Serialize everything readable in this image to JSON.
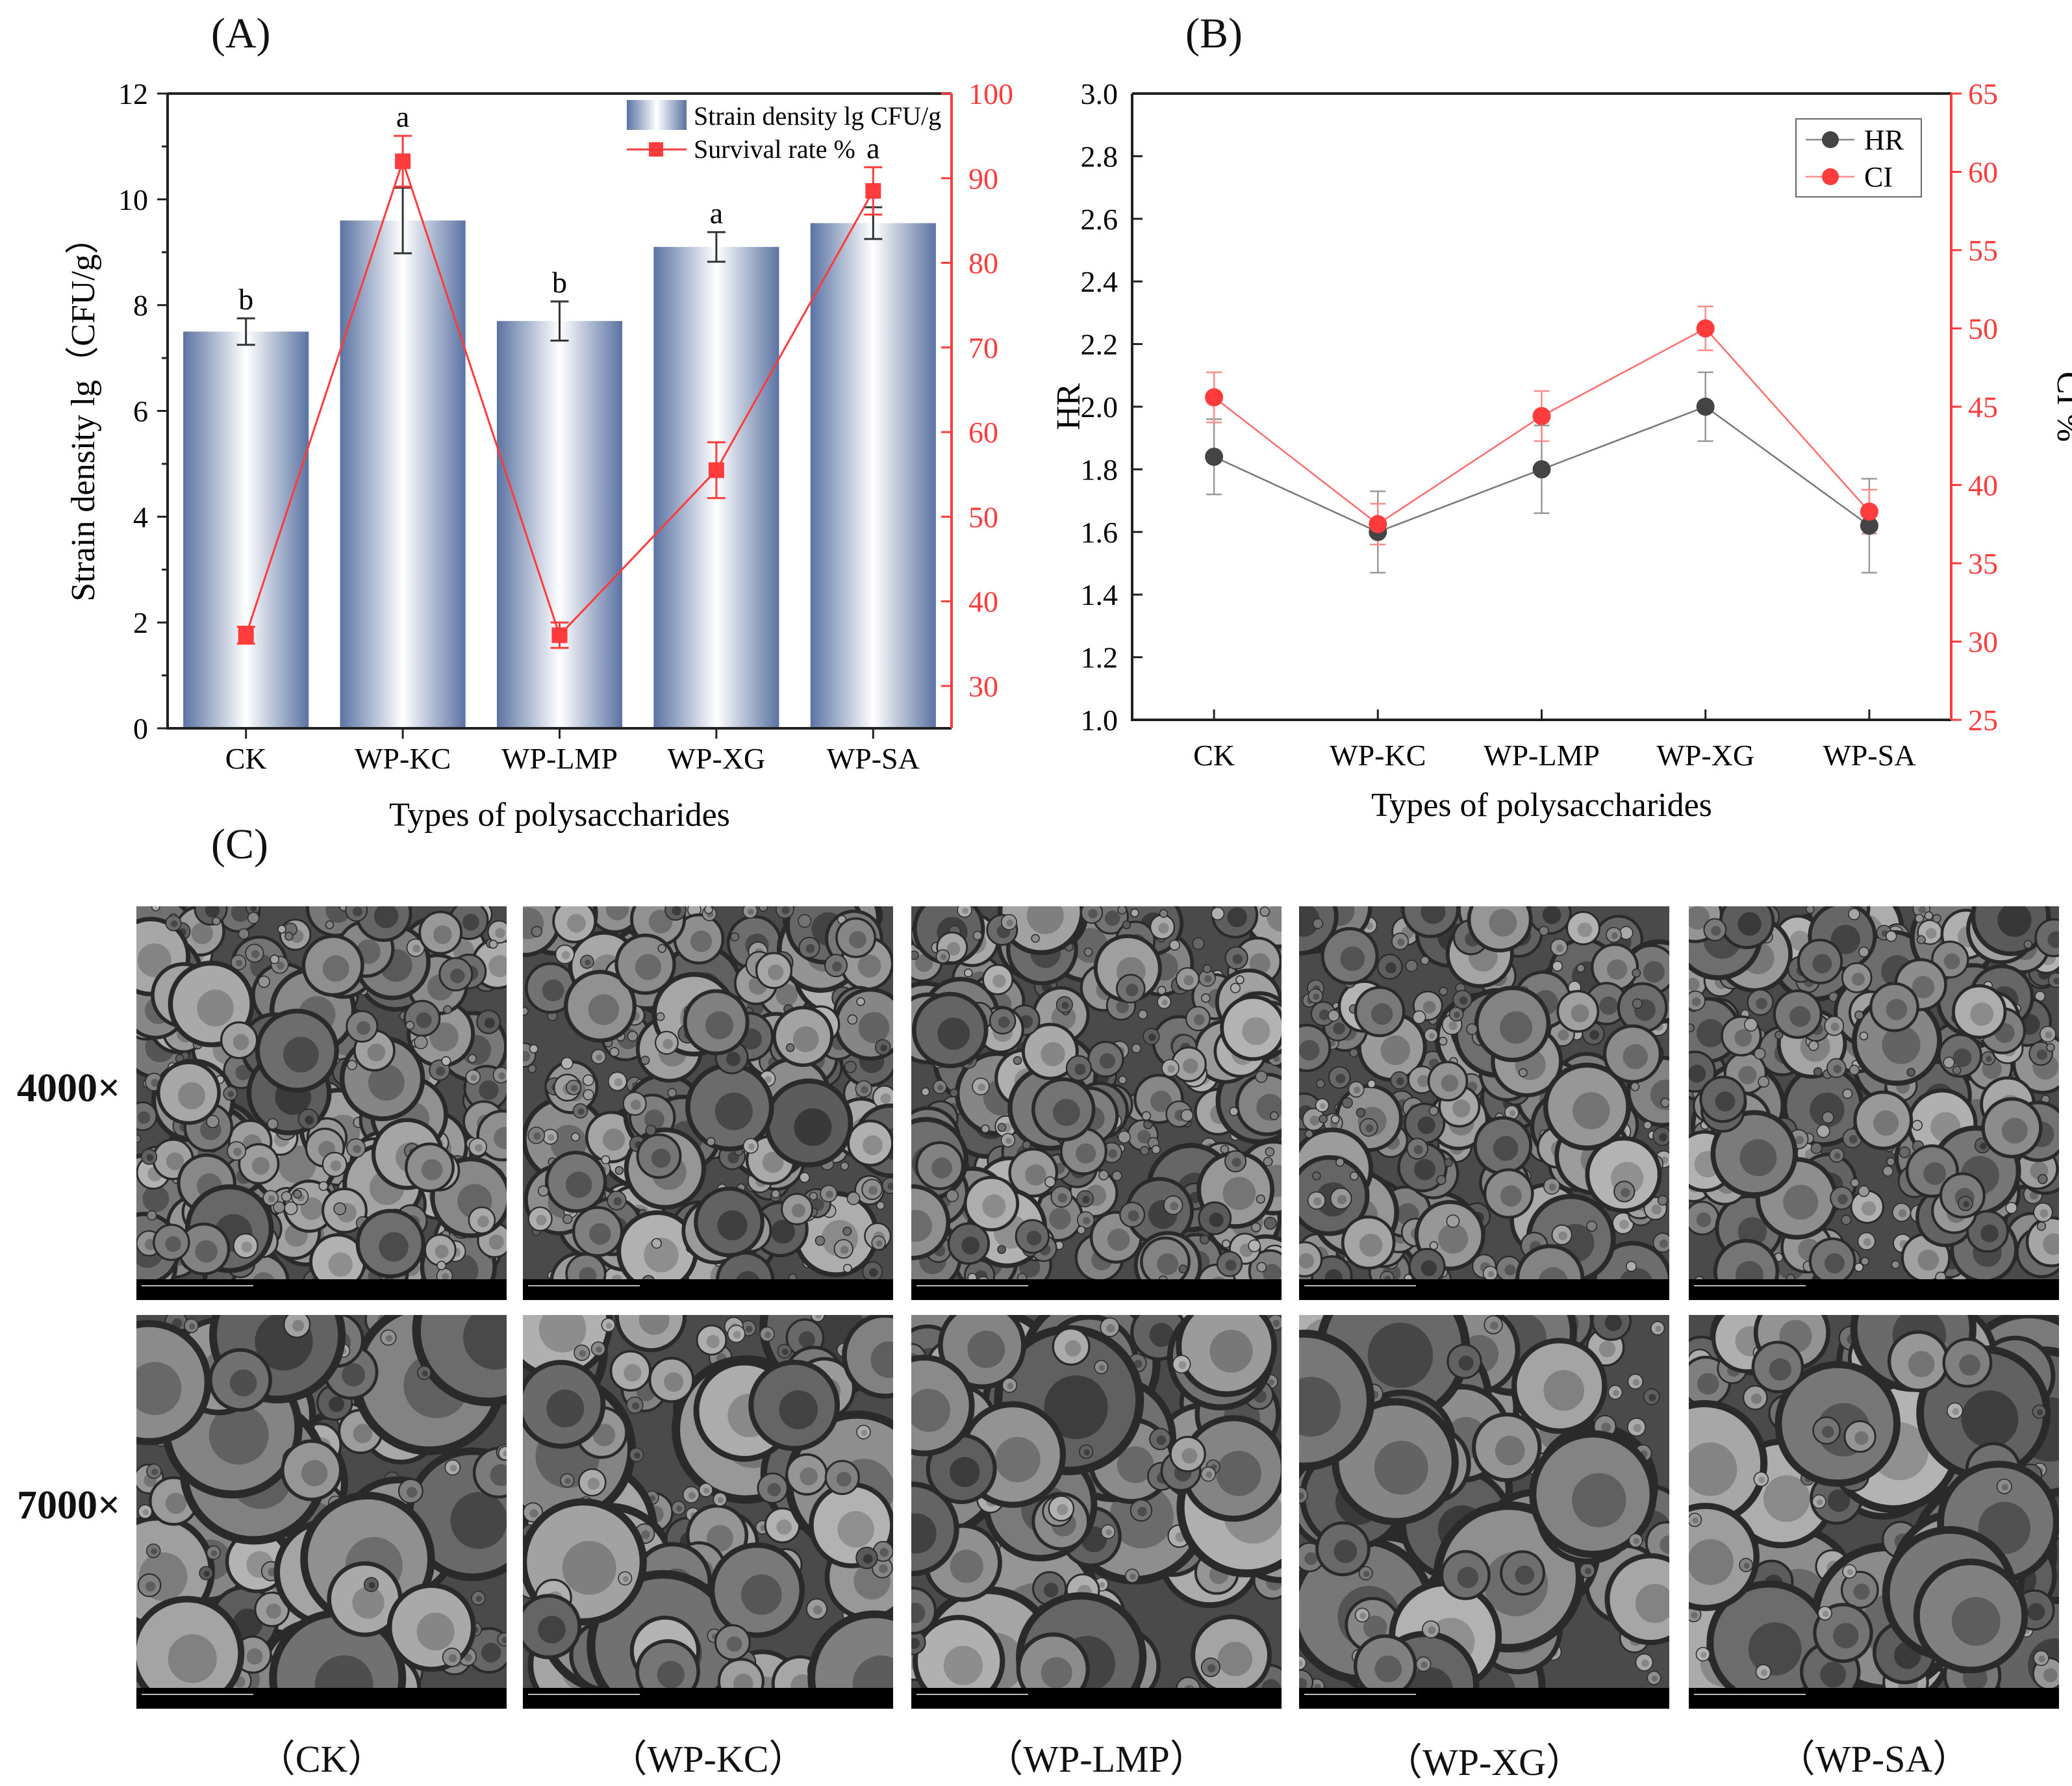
{
  "panel_labels": {
    "a": "(A)",
    "b": "(B)",
    "c": "(C)"
  },
  "chart_data": [
    {
      "type": "bar",
      "panel": "(A)",
      "categories": [
        "CK",
        "WP-KC",
        "WP-LMP",
        "WP-XG",
        "WP-SA"
      ],
      "xlabel": "Types of polysaccharides",
      "ylabel": "Strain density lg（CFU/g）",
      "ylim": [
        0,
        12
      ],
      "yticks": [
        "0",
        "2",
        "4",
        "6",
        "8",
        "10",
        "12"
      ],
      "y2lim": [
        25,
        100
      ],
      "y2ticks": [
        "30",
        "40",
        "50",
        "60",
        "70",
        "80",
        "90",
        "100"
      ],
      "legend_position": "top-right",
      "series": [
        {
          "name": "Strain density lg CFU/g",
          "kind": "bar",
          "axis": "left",
          "values": [
            7.5,
            9.6,
            7.7,
            9.1,
            9.55
          ],
          "errors": [
            0.25,
            0.62,
            0.37,
            0.28,
            0.3
          ],
          "labels": [
            "b",
            "a",
            "b",
            "a",
            "a"
          ],
          "color": "#5b73a3"
        },
        {
          "name": "Survival rate %",
          "kind": "line",
          "axis": "right",
          "values": [
            36,
            92,
            36,
            55.5,
            88.5
          ],
          "errors": [
            1,
            3,
            1.5,
            3.3,
            2.8
          ],
          "color": "#ff3b3b"
        }
      ]
    },
    {
      "type": "line",
      "panel": "(B)",
      "categories": [
        "CK",
        "WP-KC",
        "WP-LMP",
        "WP-XG",
        "WP-SA"
      ],
      "xlabel": "Types of polysaccharides",
      "ylabel": "HR",
      "y2label": "CI %",
      "ylim": [
        1.0,
        3.0
      ],
      "yticks": [
        "1.0",
        "1.2",
        "1.4",
        "1.6",
        "1.8",
        "2.0",
        "2.2",
        "2.4",
        "2.6",
        "2.8",
        "3.0"
      ],
      "y2lim": [
        25,
        65
      ],
      "y2ticks": [
        "25",
        "30",
        "35",
        "40",
        "45",
        "50",
        "55",
        "60",
        "65"
      ],
      "legend_position": "top-right",
      "series": [
        {
          "name": "HR",
          "axis": "left",
          "values": [
            1.84,
            1.6,
            1.8,
            2.0,
            1.62
          ],
          "errors": [
            0.12,
            0.13,
            0.14,
            0.11,
            0.15
          ],
          "color": "#444444"
        },
        {
          "name": "CI",
          "axis": "right",
          "values": [
            45.6,
            37.5,
            44.4,
            50.0,
            38.3
          ],
          "errors": [
            1.6,
            1.3,
            1.6,
            1.4,
            1.4
          ],
          "color": "#ff3b3b"
        }
      ]
    }
  ],
  "sem": {
    "magnifications": [
      "4000×",
      "7000×"
    ],
    "captions": [
      "（CK）",
      "（WP-KC）",
      "（WP-LMP）",
      "（WP-XG）",
      "（WP-SA）"
    ]
  }
}
